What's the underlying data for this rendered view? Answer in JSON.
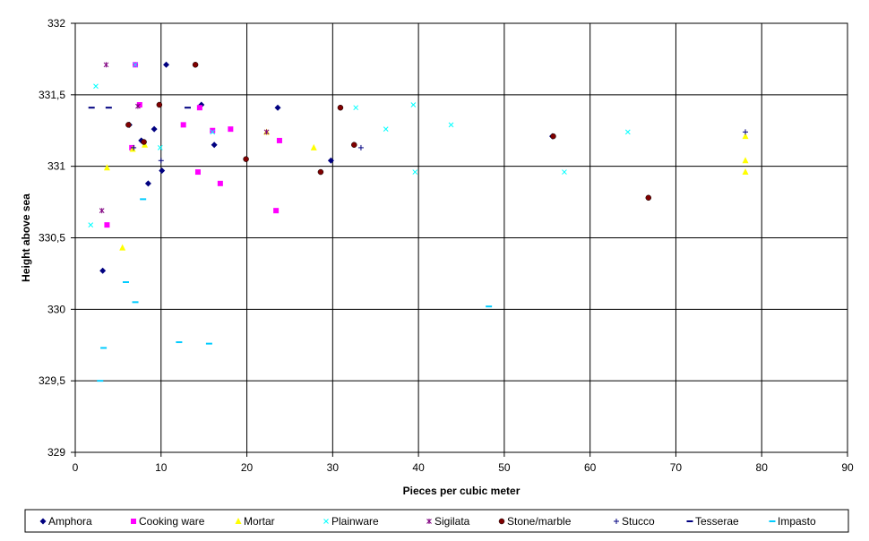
{
  "chart_data": {
    "type": "scatter",
    "title": "",
    "xlabel": "Pieces per cubic meter",
    "ylabel": "Height above sea",
    "xlim": [
      0,
      90
    ],
    "ylim": [
      329,
      332
    ],
    "x_ticks": [
      0,
      10,
      20,
      30,
      40,
      50,
      60,
      70,
      80,
      90
    ],
    "y_ticks": [
      329,
      329.5,
      330,
      330.5,
      331,
      331.5,
      332
    ],
    "x_tick_labels": [
      "0",
      "10",
      "20",
      "30",
      "40",
      "50",
      "60",
      "70",
      "80",
      "90"
    ],
    "y_tick_labels": [
      "329",
      "329,5",
      "330",
      "330,5",
      "331",
      "331,5",
      "332"
    ],
    "grid": true,
    "legend_position": "bottom",
    "series": [
      {
        "name": "Amphora",
        "marker": "diamond",
        "color": "#000080",
        "points": [
          [
            10.6,
            331.71
          ],
          [
            14.7,
            331.43
          ],
          [
            23.6,
            331.41
          ],
          [
            9.2,
            331.26
          ],
          [
            6.3,
            331.29
          ],
          [
            7.7,
            331.18
          ],
          [
            16.2,
            331.15
          ],
          [
            10.1,
            330.97
          ],
          [
            8.5,
            330.88
          ],
          [
            29.8,
            331.04
          ],
          [
            55.6,
            331.21
          ],
          [
            3.2,
            330.27
          ]
        ]
      },
      {
        "name": "Cooking ware",
        "marker": "square",
        "color": "#ff00ff",
        "points": [
          [
            7.0,
            331.71
          ],
          [
            7.5,
            331.43
          ],
          [
            14.5,
            331.41
          ],
          [
            12.6,
            331.29
          ],
          [
            18.1,
            331.26
          ],
          [
            16.0,
            331.25
          ],
          [
            23.8,
            331.18
          ],
          [
            6.6,
            331.13
          ],
          [
            14.3,
            330.96
          ],
          [
            16.9,
            330.88
          ],
          [
            23.4,
            330.69
          ],
          [
            3.7,
            330.59
          ]
        ]
      },
      {
        "name": "Mortar",
        "marker": "triangle",
        "color": "#ffff00",
        "points": [
          [
            22.3,
            331.24
          ],
          [
            27.8,
            331.13
          ],
          [
            6.7,
            331.12
          ],
          [
            8.1,
            331.15
          ],
          [
            3.7,
            330.99
          ],
          [
            5.5,
            330.43
          ],
          [
            78.1,
            331.21
          ],
          [
            78.1,
            331.04
          ],
          [
            78.1,
            330.96
          ]
        ]
      },
      {
        "name": "Plainware",
        "marker": "x",
        "color": "#00ffff",
        "points": [
          [
            2.4,
            331.56
          ],
          [
            32.7,
            331.41
          ],
          [
            39.4,
            331.43
          ],
          [
            43.8,
            331.29
          ],
          [
            36.2,
            331.26
          ],
          [
            64.4,
            331.24
          ],
          [
            9.9,
            331.13
          ],
          [
            39.6,
            330.96
          ],
          [
            57.0,
            330.96
          ],
          [
            1.8,
            330.59
          ],
          [
            7.0,
            331.71
          ],
          [
            16.0,
            331.24
          ]
        ]
      },
      {
        "name": "Sigilata",
        "marker": "asterisk",
        "color": "#800080",
        "points": [
          [
            3.6,
            331.71
          ],
          [
            7.3,
            331.42
          ],
          [
            3.1,
            330.69
          ],
          [
            22.3,
            331.24
          ]
        ]
      },
      {
        "name": "Stone/marble",
        "marker": "circle",
        "color": "#800000",
        "points": [
          [
            14.0,
            331.71
          ],
          [
            9.8,
            331.43
          ],
          [
            30.9,
            331.41
          ],
          [
            6.2,
            331.29
          ],
          [
            8.0,
            331.17
          ],
          [
            32.5,
            331.15
          ],
          [
            19.9,
            331.05
          ],
          [
            28.6,
            330.96
          ],
          [
            55.7,
            331.21
          ],
          [
            66.8,
            330.78
          ]
        ]
      },
      {
        "name": "Stucco",
        "marker": "plus",
        "color": "#000080",
        "points": [
          [
            33.3,
            331.13
          ],
          [
            78.1,
            331.24
          ],
          [
            10.0,
            331.04
          ],
          [
            6.8,
            331.13
          ]
        ]
      },
      {
        "name": "Tesserae",
        "marker": "dash",
        "color": "#000080",
        "points": [
          [
            1.9,
            331.41
          ],
          [
            3.9,
            331.41
          ],
          [
            13.1,
            331.41
          ]
        ]
      },
      {
        "name": "Impasto",
        "marker": "dash",
        "color": "#00ccff",
        "points": [
          [
            7.9,
            330.77
          ],
          [
            5.9,
            330.19
          ],
          [
            7.0,
            330.05
          ],
          [
            48.2,
            330.02
          ],
          [
            12.1,
            329.77
          ],
          [
            15.6,
            329.76
          ],
          [
            3.3,
            329.73
          ],
          [
            2.9,
            329.5
          ]
        ]
      }
    ]
  }
}
